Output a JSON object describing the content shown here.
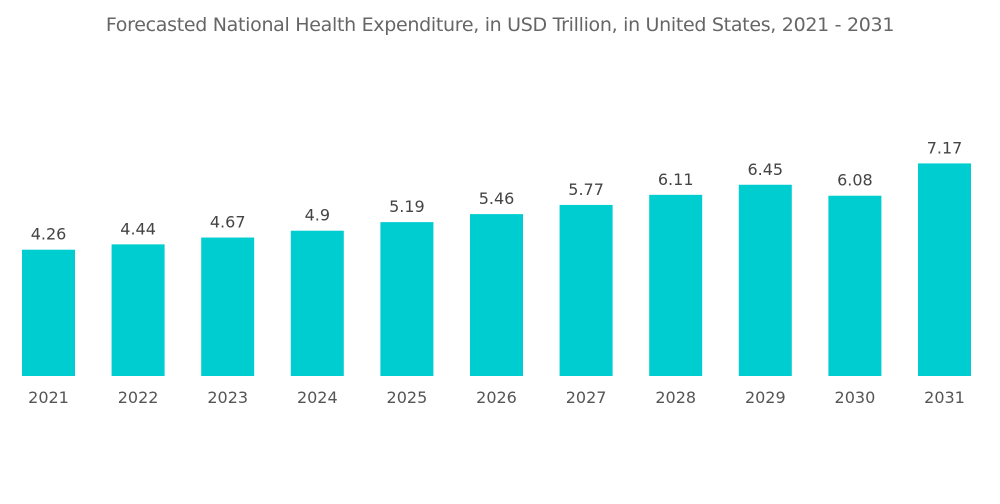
{
  "chart_data": {
    "type": "bar",
    "title": "Forecasted National Health Expenditure, in USD Trillion, in United States, 2021 - 2031",
    "categories": [
      "2021",
      "2022",
      "2023",
      "2024",
      "2025",
      "2026",
      "2027",
      "2028",
      "2029",
      "2030",
      "2031"
    ],
    "values": [
      4.26,
      4.44,
      4.67,
      4.9,
      5.19,
      5.46,
      5.77,
      6.11,
      6.45,
      6.08,
      7.17
    ],
    "data_labels": [
      "4.26",
      "4.44",
      "4.67",
      "4.9",
      "5.19",
      "5.46",
      "5.77",
      "6.11",
      "6.45",
      "6.08",
      "7.17"
    ],
    "xlabel": "",
    "ylabel": "",
    "ylim": [
      0,
      8
    ],
    "grid": false,
    "legend": "none",
    "bar_color": "#00CDD0"
  }
}
